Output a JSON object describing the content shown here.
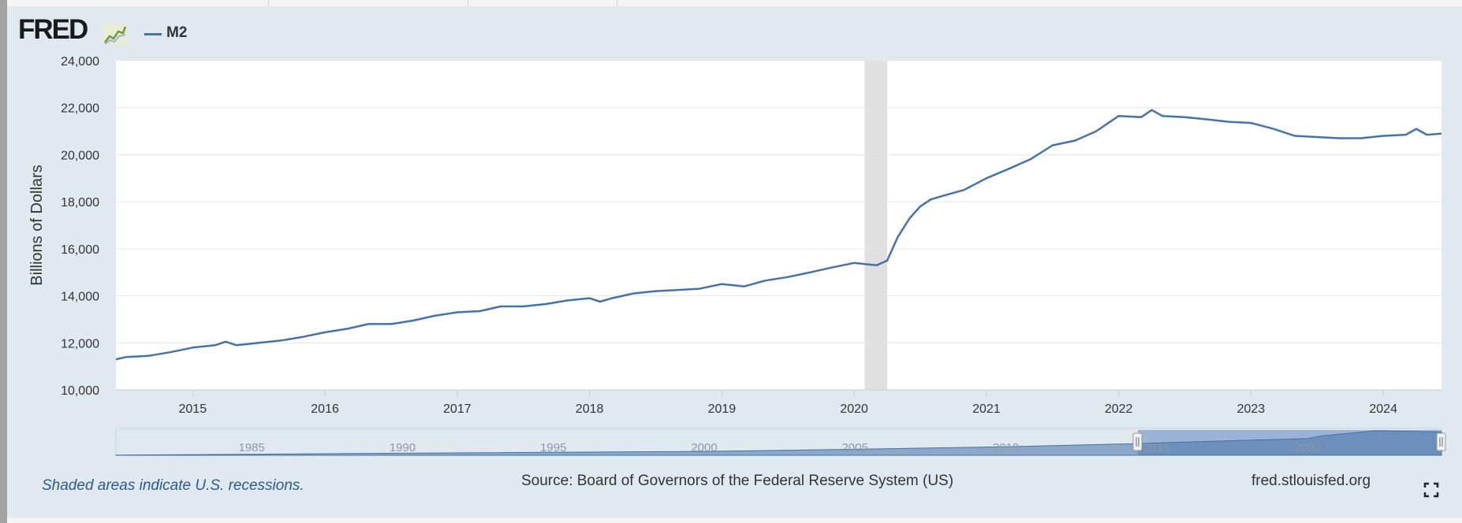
{
  "header": {
    "logo_text": "FRED",
    "logo_icon": "fred-graph-icon",
    "legend_label": "M2"
  },
  "footer": {
    "recession_note": "Shaded areas indicate U.S. recessions.",
    "source": "Source: Board of Governors of the Federal Reserve System (US)",
    "site": "fred.stlouisfed.org",
    "fullscreen_icon": "fullscreen-icon"
  },
  "colors": {
    "series": "#4572a7",
    "recession": "#e0e0e0",
    "frame": "#e1e9f0",
    "note": "#2b5a93"
  },
  "chart_data": {
    "type": "line",
    "title": "",
    "xlabel": "",
    "ylabel": "Billions of Dollars",
    "ylim": [
      10000,
      24000
    ],
    "xlim": [
      2014.42,
      2024.44
    ],
    "yticks": [
      "10,000",
      "12,000",
      "14,000",
      "16,000",
      "18,000",
      "20,000",
      "22,000",
      "24,000"
    ],
    "xticks": [
      "2015",
      "2016",
      "2017",
      "2018",
      "2019",
      "2020",
      "2021",
      "2022",
      "2023",
      "2024"
    ],
    "grid": true,
    "legend": "top-left",
    "recessions": [
      [
        2020.08,
        2020.25
      ]
    ],
    "series": [
      {
        "name": "M2",
        "x": [
          2014.42,
          2014.5,
          2014.67,
          2014.83,
          2015.0,
          2015.17,
          2015.25,
          2015.33,
          2015.42,
          2015.5,
          2015.67,
          2015.83,
          2016.0,
          2016.17,
          2016.33,
          2016.5,
          2016.67,
          2016.83,
          2017.0,
          2017.17,
          2017.33,
          2017.5,
          2017.67,
          2017.83,
          2018.0,
          2018.08,
          2018.17,
          2018.33,
          2018.5,
          2018.67,
          2018.83,
          2019.0,
          2019.17,
          2019.33,
          2019.5,
          2019.67,
          2019.83,
          2020.0,
          2020.08,
          2020.17,
          2020.25,
          2020.33,
          2020.42,
          2020.5,
          2020.58,
          2020.67,
          2020.83,
          2021.0,
          2021.17,
          2021.33,
          2021.5,
          2021.67,
          2021.83,
          2022.0,
          2022.17,
          2022.25,
          2022.33,
          2022.5,
          2022.67,
          2022.83,
          2023.0,
          2023.17,
          2023.33,
          2023.5,
          2023.67,
          2023.83,
          2024.0,
          2024.17,
          2024.25,
          2024.33,
          2024.44
        ],
        "values": [
          11300,
          11400,
          11450,
          11600,
          11800,
          11900,
          12050,
          11900,
          11950,
          12000,
          12100,
          12250,
          12450,
          12600,
          12800,
          12800,
          12950,
          13150,
          13300,
          13350,
          13550,
          13550,
          13650,
          13800,
          13900,
          13750,
          13900,
          14100,
          14200,
          14250,
          14300,
          14500,
          14400,
          14650,
          14800,
          15000,
          15200,
          15400,
          15350,
          15300,
          15500,
          16500,
          17300,
          17800,
          18100,
          18250,
          18500,
          19000,
          19400,
          19800,
          20400,
          20600,
          21000,
          21650,
          21600,
          21900,
          21650,
          21600,
          21500,
          21400,
          21350,
          21100,
          20800,
          20750,
          20700,
          20700,
          20800,
          20850,
          21100,
          20850,
          20900
        ]
      }
    ],
    "navigator_ticks": [
      "1985",
      "1990",
      "1995",
      "2000",
      "2005",
      "2010",
      "2015",
      "2020"
    ]
  }
}
